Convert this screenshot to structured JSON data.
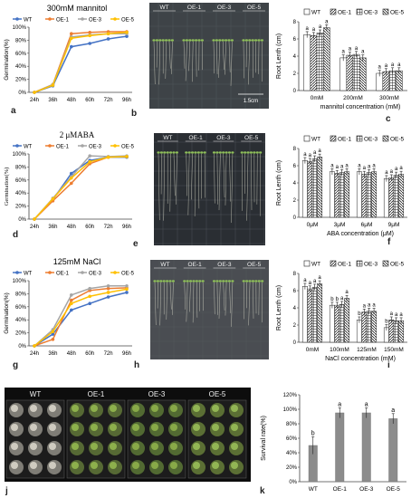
{
  "panel_letters": {
    "a": "a",
    "b": "b",
    "c": "c",
    "d": "d",
    "e": "e",
    "f": "f",
    "g": "g",
    "h": "h",
    "i": "i",
    "j": "j",
    "k": "k"
  },
  "lines": [
    {
      "id": "a",
      "title": "300mM mannitol",
      "ylabel": "Germination(%)",
      "yticks": [
        "0%",
        "20%",
        "40%",
        "60%",
        "80%",
        "100%"
      ],
      "categories": [
        "24h",
        "36h",
        "48h",
        "60h",
        "72h",
        "96h"
      ],
      "legend": [
        "WT",
        "OE-1",
        "OE-3",
        "OE-5"
      ]
    },
    {
      "id": "d",
      "title": "2 μMABA",
      "ylabel": "Germination(%)",
      "yticks": [
        "0%",
        "20%",
        "40%",
        "60%",
        "80%",
        "100%"
      ],
      "categories": [
        "24h",
        "36h",
        "48h",
        "60h",
        "72h",
        "96h"
      ],
      "legend": [
        "WT",
        "OE-1",
        "OE-3",
        "OE-5"
      ]
    },
    {
      "id": "g",
      "title": "125mM NaCl",
      "ylabel": "Germination(%)",
      "yticks": [
        "0%",
        "20%",
        "40%",
        "60%",
        "80%",
        "100%"
      ],
      "categories": [
        "24h",
        "36h",
        "48h",
        "60h",
        "72h",
        "96h"
      ],
      "legend": [
        "WT",
        "OE-1",
        "OE-3",
        "OE-5"
      ]
    }
  ],
  "bars": [
    {
      "id": "c",
      "ylabel": "Root Lenth  (cm)",
      "xlabel": "mannitol concentration   (mM)",
      "yticks": [
        "0",
        "2",
        "4",
        "6",
        "8"
      ],
      "categories": [
        "0mM",
        "200mM",
        "300mM"
      ],
      "legend": [
        "WT",
        "OE-1",
        "OE-3",
        "OE-5"
      ]
    },
    {
      "id": "f",
      "ylabel": "Root Lenth  (cm)",
      "xlabel": "ABA concentration   (μM)",
      "yticks": [
        "0",
        "2",
        "4",
        "6",
        "8"
      ],
      "categories": [
        "0μM",
        "3μM",
        "6μM",
        "9μM"
      ],
      "legend": [
        "WT",
        "OE-1",
        "OE-3",
        "OE-5"
      ]
    },
    {
      "id": "i",
      "ylabel": "Root Lenth  (cm)",
      "xlabel": "NaCl concentration    (mM)",
      "yticks": [
        "0",
        "2",
        "4",
        "6",
        "8"
      ],
      "categories": [
        "0mM",
        "100mM",
        "125mM",
        "150mM"
      ],
      "legend": [
        "WT",
        "OE-1",
        "OE-3",
        "OE-5"
      ]
    },
    {
      "id": "k",
      "ylabel": "Survival rate(%)",
      "xlabel": "",
      "yticks": [
        "0%",
        "20%",
        "40%",
        "60%",
        "80%",
        "100%",
        "120%"
      ],
      "categories": [
        "WT",
        "OE-1",
        "OE-3",
        "OE-5"
      ],
      "legend": []
    }
  ],
  "photos": {
    "b": {
      "labels": [
        "WT",
        "OE-1",
        "OE-3",
        "OE-5"
      ],
      "scale": "1.5cm"
    },
    "e": {
      "labels": [
        "WT",
        "OE-1",
        "OE-3",
        "OE-5"
      ]
    },
    "h": {
      "labels": [
        "WT",
        "OE-1",
        "OE-3",
        "OE-5"
      ]
    },
    "j": {
      "labels": [
        "WT",
        "OE-1",
        "OE-3",
        "OE-5"
      ]
    }
  },
  "colors": {
    "WT": "#4472c4",
    "OE-1": "#ed7d31",
    "OE-3": "#a5a5a5",
    "OE-5": "#ffc000",
    "bar_k": "#8c8c8c"
  },
  "chart_data": [
    {
      "type": "line",
      "title": "300mM mannitol",
      "xlabel": "",
      "ylabel": "Germination(%)",
      "categories": [
        "24h",
        "36h",
        "48h",
        "60h",
        "72h",
        "96h"
      ],
      "ylim": [
        0,
        100
      ],
      "series": [
        {
          "name": "WT",
          "values": [
            0,
            10,
            70,
            75,
            82,
            86
          ]
        },
        {
          "name": "OE-1",
          "values": [
            0,
            12,
            90,
            92,
            93,
            93
          ]
        },
        {
          "name": "OE-3",
          "values": [
            0,
            12,
            85,
            88,
            90,
            90
          ]
        },
        {
          "name": "OE-5",
          "values": [
            0,
            11,
            83,
            87,
            90,
            92
          ]
        }
      ]
    },
    {
      "type": "line",
      "title": "2 μMABA",
      "xlabel": "",
      "ylabel": "Germination(%)",
      "categories": [
        "24h",
        "36h",
        "48h",
        "60h",
        "72h",
        "96h"
      ],
      "ylim": [
        0,
        100
      ],
      "series": [
        {
          "name": "WT",
          "values": [
            0,
            30,
            70,
            90,
            95,
            95
          ]
        },
        {
          "name": "OE-1",
          "values": [
            0,
            28,
            55,
            85,
            95,
            96
          ]
        },
        {
          "name": "OE-3",
          "values": [
            0,
            32,
            65,
            97,
            96,
            97
          ]
        },
        {
          "name": "OE-5",
          "values": [
            0,
            31,
            63,
            88,
            95,
            96
          ]
        }
      ]
    },
    {
      "type": "line",
      "title": "125mM NaCl",
      "xlabel": "",
      "ylabel": "Germination(%)",
      "categories": [
        "24h",
        "36h",
        "48h",
        "60h",
        "72h",
        "96h"
      ],
      "ylim": [
        0,
        100
      ],
      "series": [
        {
          "name": "WT",
          "values": [
            0,
            18,
            55,
            65,
            75,
            82
          ]
        },
        {
          "name": "OE-1",
          "values": [
            0,
            10,
            70,
            85,
            88,
            89
          ]
        },
        {
          "name": "OE-3",
          "values": [
            0,
            25,
            78,
            88,
            92,
            92
          ]
        },
        {
          "name": "OE-5",
          "values": [
            0,
            22,
            65,
            76,
            82,
            87
          ]
        }
      ]
    },
    {
      "type": "bar",
      "xlabel": "mannitol concentration   (mM)",
      "ylabel": "Root Lenth  (cm)",
      "categories": [
        "0mM",
        "200mM",
        "300mM"
      ],
      "ylim": [
        0,
        8
      ],
      "series": [
        {
          "name": "WT",
          "values": [
            6.5,
            3.8,
            2.0
          ]
        },
        {
          "name": "OE-1",
          "values": [
            6.4,
            4.1,
            2.2
          ]
        },
        {
          "name": "OE-3",
          "values": [
            6.7,
            4.2,
            2.3
          ]
        },
        {
          "name": "OE-5",
          "values": [
            7.3,
            3.8,
            2.3
          ]
        }
      ],
      "annotations": [
        "a",
        "a",
        "a",
        "a",
        "a",
        "a",
        "a",
        "a",
        "a",
        "a",
        "a",
        "a"
      ]
    },
    {
      "type": "bar",
      "xlabel": "ABA concentration   (μM)",
      "ylabel": "Root Lenth  (cm)",
      "categories": [
        "0μM",
        "3μM",
        "6μM",
        "9μM"
      ],
      "ylim": [
        0,
        8
      ],
      "series": [
        {
          "name": "WT",
          "values": [
            6.6,
            5.3,
            5.3,
            4.5
          ]
        },
        {
          "name": "OE-1",
          "values": [
            6.5,
            5.1,
            5.0,
            4.6
          ]
        },
        {
          "name": "OE-3",
          "values": [
            6.8,
            5.2,
            5.2,
            4.9
          ]
        },
        {
          "name": "OE-5",
          "values": [
            7.0,
            5.3,
            5.3,
            5.0
          ]
        }
      ],
      "annotations": [
        "a",
        "a",
        "a",
        "a",
        "a",
        "a",
        "a",
        "a",
        "a",
        "a",
        "a",
        "a",
        "a",
        "a",
        "a",
        "a"
      ]
    },
    {
      "type": "bar",
      "xlabel": "NaCl concentration    (mM)",
      "ylabel": "Root Lenth  (cm)",
      "categories": [
        "0mM",
        "100mM",
        "125mM",
        "150mM"
      ],
      "ylim": [
        0,
        8
      ],
      "series": [
        {
          "name": "WT",
          "values": [
            6.5,
            4.3,
            2.6,
            1.7
          ]
        },
        {
          "name": "OE-1",
          "values": [
            6.2,
            4.3,
            3.5,
            2.6
          ]
        },
        {
          "name": "OE-3",
          "values": [
            6.4,
            4.4,
            3.6,
            2.5
          ]
        },
        {
          "name": "OE-5",
          "values": [
            6.8,
            5.1,
            3.6,
            2.5
          ]
        }
      ],
      "annotations": [
        "a",
        "a",
        "a",
        "a",
        "b",
        "b",
        "a",
        "a",
        "b",
        "a",
        "a",
        "a",
        "b",
        "a",
        "a",
        "a"
      ]
    },
    {
      "type": "bar",
      "xlabel": "",
      "ylabel": "Survival rate(%)",
      "categories": [
        "WT",
        "OE-1",
        "OE-3",
        "OE-5"
      ],
      "ylim": [
        0,
        120
      ],
      "series": [
        {
          "name": "",
          "values": [
            50,
            95,
            95,
            87
          ]
        }
      ],
      "annotations": [
        "b",
        "a",
        "a",
        "a"
      ]
    }
  ]
}
